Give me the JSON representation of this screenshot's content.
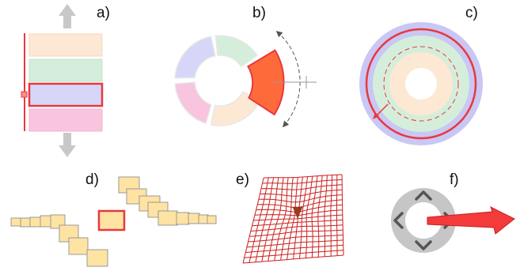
{
  "panels": [
    {
      "id": "a",
      "label": "a)"
    },
    {
      "id": "b",
      "label": "b)"
    },
    {
      "id": "c",
      "label": "c)"
    },
    {
      "id": "d",
      "label": "d)"
    },
    {
      "id": "e",
      "label": "e)"
    },
    {
      "id": "f",
      "label": "f)"
    }
  ],
  "colors": {
    "peach": "#fde8d4",
    "mint": "#d5eedb",
    "lavender": "#d6d6f8",
    "pink": "#f8c4de",
    "highlight": "#e8383d",
    "wedge_fill": "#ff6a3a",
    "arrow_gray": "#c8c8c8",
    "outer_ring": "#c9c7f3",
    "square_fill": "#ffe3a3",
    "square_stroke": "#999999",
    "mesh_red": "#cc1f1f",
    "dial_gray": "#c6c6c6",
    "chevron": "#555555",
    "big_arrow": "#f43b3b"
  }
}
